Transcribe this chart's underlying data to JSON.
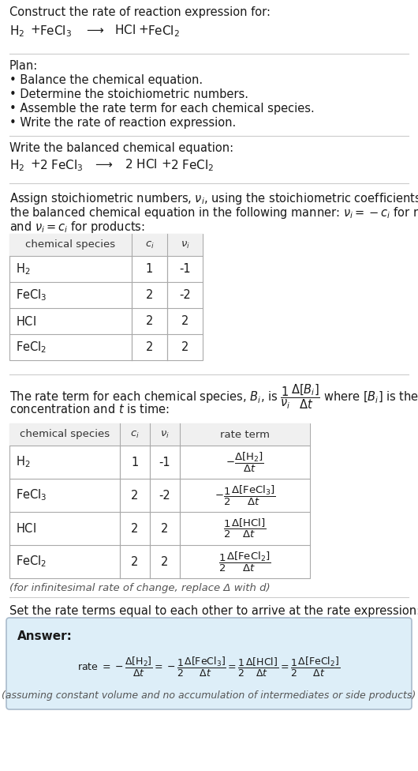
{
  "bg_color": "#ffffff",
  "text_color": "#1a1a1a",
  "gray_text": "#555555",
  "answer_bg": "#ddeeff",
  "answer_border": "#99bbcc",
  "title": "Construct the rate of reaction expression for:",
  "plan_header": "Plan:",
  "plan_items": [
    "• Balance the chemical equation.",
    "• Determine the stoichiometric numbers.",
    "• Assemble the rate term for each chemical species.",
    "• Write the rate of reaction expression."
  ],
  "balanced_header": "Write the balanced chemical equation:",
  "table1_rows": [
    [
      "H_2",
      "1",
      "-1"
    ],
    [
      "FeCl_3",
      "2",
      "-2"
    ],
    [
      "HCl",
      "2",
      "2"
    ],
    [
      "FeCl_2",
      "2",
      "2"
    ]
  ],
  "table2_rows": [
    [
      "H_2",
      "1",
      "-1"
    ],
    [
      "FeCl_3",
      "2",
      "-2"
    ],
    [
      "HCl",
      "2",
      "2"
    ],
    [
      "FeCl_2",
      "2",
      "2"
    ]
  ],
  "infinitesimal_note": "(for infinitesimal rate of change, replace Δ with d)",
  "set_rate_text": "Set the rate terms equal to each other to arrive at the rate expression:",
  "answer_label": "Answer:",
  "answer_note": "(assuming constant volume and no accumulation of intermediates or side products)"
}
